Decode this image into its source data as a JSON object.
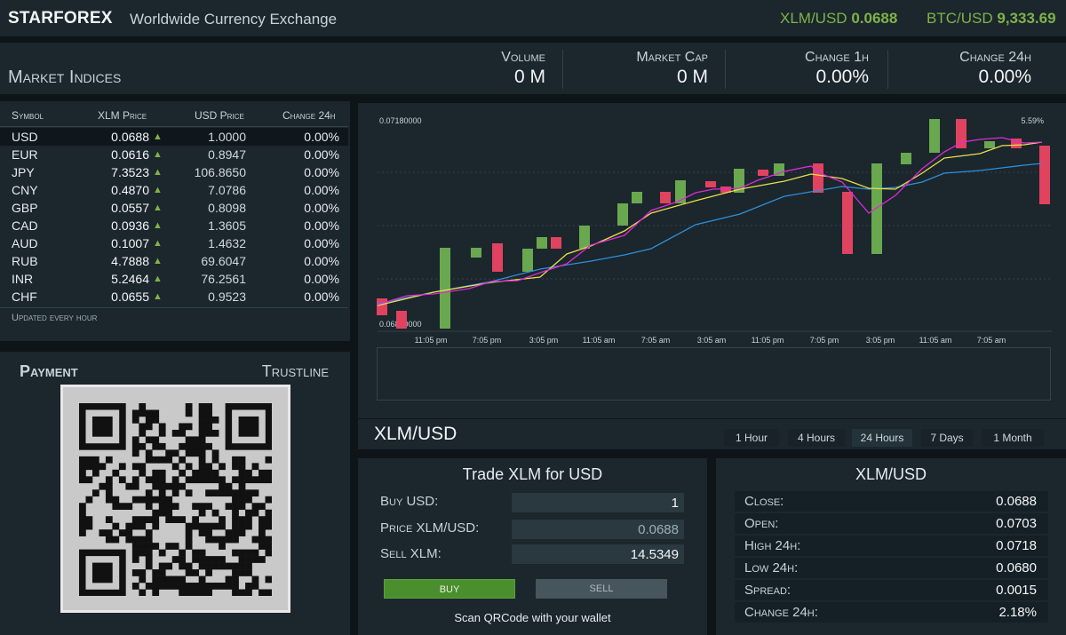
{
  "header": {
    "brand": "STARFOREX",
    "tagline": "Worldwide Currency Exchange",
    "tickers": [
      {
        "pair": "XLM/USD",
        "value": "0.0688"
      },
      {
        "pair": "BTC/USD",
        "value": "9,333.69"
      }
    ]
  },
  "market": {
    "title": "Market Indices",
    "stats": [
      {
        "label": "Volume",
        "value": "0 M"
      },
      {
        "label": "Market Cap",
        "value": "0 M"
      },
      {
        "label": "Change 1h",
        "value": "0.00%"
      },
      {
        "label": "Change 24h",
        "value": "0.00%"
      }
    ]
  },
  "indices": {
    "headers": [
      "Symbol",
      "XLM Price",
      "USD Price",
      "Change 24h"
    ],
    "rows": [
      {
        "symbol": "USD",
        "xlm": "0.0688",
        "usd": "1.0000",
        "change": "0.00%"
      },
      {
        "symbol": "EUR",
        "xlm": "0.0616",
        "usd": "0.8947",
        "change": "0.00%"
      },
      {
        "symbol": "JPY",
        "xlm": "7.3523",
        "usd": "106.8650",
        "change": "0.00%"
      },
      {
        "symbol": "CNY",
        "xlm": "0.4870",
        "usd": "7.0786",
        "change": "0.00%"
      },
      {
        "symbol": "GBP",
        "xlm": "0.0557",
        "usd": "0.8098",
        "change": "0.00%"
      },
      {
        "symbol": "CAD",
        "xlm": "0.0936",
        "usd": "1.3605",
        "change": "0.00%"
      },
      {
        "symbol": "AUD",
        "xlm": "0.1007",
        "usd": "1.4632",
        "change": "0.00%"
      },
      {
        "symbol": "RUB",
        "xlm": "4.7888",
        "usd": "69.6047",
        "change": "0.00%"
      },
      {
        "symbol": "INR",
        "xlm": "5.2464",
        "usd": "76.2561",
        "change": "0.00%"
      },
      {
        "symbol": "CHF",
        "xlm": "0.0655",
        "usd": "0.9523",
        "change": "0.00%"
      }
    ],
    "arrow": "▲",
    "updated": "Updated every hour"
  },
  "payment": {
    "title": "Payment",
    "trustline": "Trustline"
  },
  "chart": {
    "ymax_label": "0.07180000",
    "ymin_label": "0.06800000",
    "change_label": "5.59%",
    "x_labels": [
      "11:05 pm",
      "7:05 pm",
      "3:05 pm",
      "11:05 am",
      "7:05 am",
      "3:05 am",
      "11:05 pm",
      "7:05 pm",
      "3:05 pm",
      "11:05 am",
      "7:05 am"
    ],
    "colors": {
      "up": "#6aa84f",
      "down": "#e0435f",
      "ma_fast": "#e02ad6",
      "ma_mid": "#e8e04a",
      "ma_slow": "#2f8fd8"
    }
  },
  "pair": {
    "title": "XLM/USD",
    "ranges": [
      "1 Hour",
      "4 Hours",
      "24 Hours",
      "7 Days",
      "1 Month"
    ],
    "active_range": "24 Hours"
  },
  "trade": {
    "title": "Trade XLM for USD",
    "buy_label": "Buy USD:",
    "buy_value": "1",
    "price_label": "Price XLM/USD:",
    "price_value": "0.0688",
    "sell_label": "Sell XLM:",
    "sell_value": "14.5349",
    "buy_button": "BUY",
    "sell_button": "SELL",
    "scan_text": "Scan QRCode with your wallet"
  },
  "quote": {
    "title": "XLM/USD",
    "rows": [
      {
        "label": "Close:",
        "value": "0.0688"
      },
      {
        "label": "Open:",
        "value": "0.0703"
      },
      {
        "label": "High 24h:",
        "value": "0.0718"
      },
      {
        "label": "Low 24h:",
        "value": "0.0680"
      },
      {
        "label": "Spread:",
        "value": "0.0015"
      },
      {
        "label": "Change 24h:",
        "value": "2.18%"
      }
    ]
  }
}
